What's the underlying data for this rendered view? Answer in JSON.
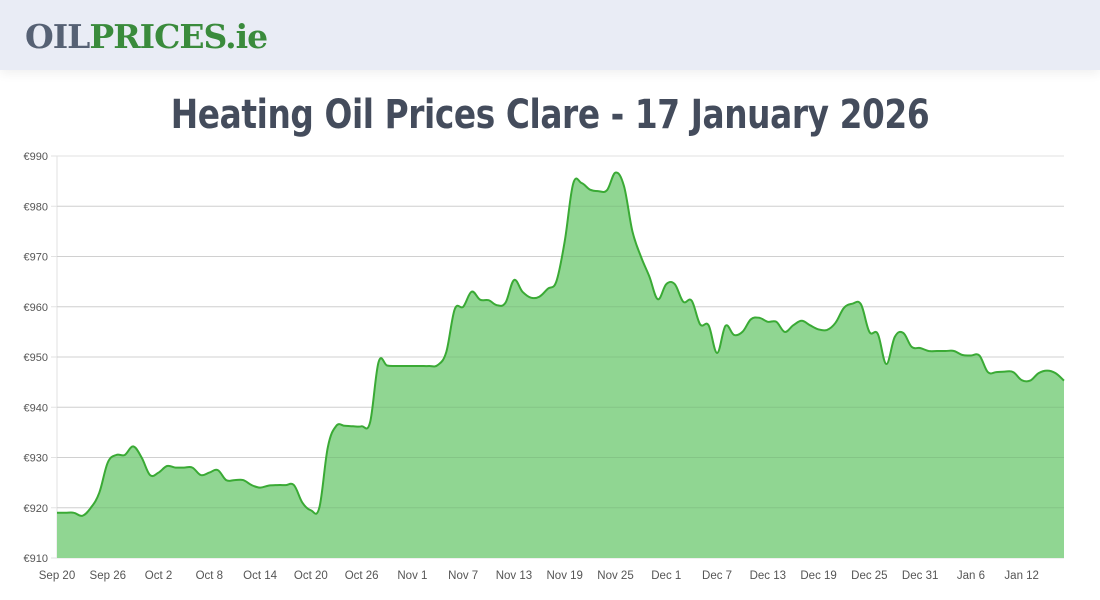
{
  "header": {
    "logo": {
      "part1": "OIL",
      "part2": "PRICES.ie"
    }
  },
  "page": {
    "title": "Heating Oil Prices Clare - 17 January 2026"
  },
  "colors": {
    "header_bg": "#e9ecf5",
    "logo_gray": "#566174",
    "logo_green": "#3a8b3c",
    "title": "#444c5c",
    "line": "#3aaa35",
    "fill": "#90d692",
    "grid": "#e2e2e2"
  },
  "chart_data": {
    "type": "area",
    "title": "Heating Oil Prices Clare - 17 January 2026",
    "xlabel": "",
    "ylabel": "",
    "currency_prefix": "€",
    "ylim": [
      910,
      990
    ],
    "yticks": [
      910,
      920,
      930,
      940,
      950,
      960,
      970,
      980,
      990
    ],
    "ytick_labels": [
      "€910",
      "€920",
      "€930",
      "€940",
      "€950",
      "€960",
      "€970",
      "€980",
      "€990"
    ],
    "xtick_labels": [
      "Sep 20",
      "Sep 26",
      "Oct 2",
      "Oct 8",
      "Oct 14",
      "Oct 20",
      "Oct 26",
      "Nov 1",
      "Nov 7",
      "Nov 13",
      "Nov 19",
      "Nov 25",
      "Dec 1",
      "Dec 7",
      "Dec 13",
      "Dec 19",
      "Dec 25",
      "Dec 31",
      "Jan 6",
      "Jan 12"
    ],
    "xtick_day_offsets": [
      0,
      6,
      12,
      18,
      24,
      30,
      36,
      42,
      48,
      54,
      60,
      66,
      72,
      78,
      84,
      90,
      96,
      102,
      108,
      114
    ],
    "grid": true,
    "legend": null,
    "x_start": "Sep 20",
    "x_end": "Jan 17",
    "series": [
      {
        "name": "Heating Oil Price (Clare)",
        "values": [
          919.0,
          919.0,
          919.0,
          918.4,
          920.0,
          923.0,
          929.0,
          930.5,
          930.5,
          932.2,
          930.0,
          926.5,
          927.0,
          928.3,
          928.0,
          928.0,
          928.0,
          926.5,
          927.0,
          927.5,
          925.5,
          925.5,
          925.5,
          924.5,
          924.0,
          924.4,
          924.5,
          924.5,
          924.5,
          921.0,
          919.5,
          920.0,
          932.0,
          936.3,
          936.3,
          936.2,
          936.2,
          937.0,
          949.0,
          948.3,
          948.2,
          948.2,
          948.2,
          948.2,
          948.2,
          948.4,
          951.0,
          959.5,
          960.0,
          963.0,
          961.4,
          961.3,
          960.3,
          960.8,
          965.3,
          963.0,
          961.8,
          962.0,
          963.6,
          965.0,
          973.0,
          984.5,
          984.6,
          983.3,
          983.0,
          983.2,
          986.7,
          984.0,
          975.0,
          970.0,
          966.0,
          961.5,
          964.5,
          964.5,
          961.0,
          961.2,
          956.5,
          956.3,
          950.8,
          956.2,
          954.4,
          955.0,
          957.5,
          957.8,
          957.0,
          957.0,
          955.0,
          956.3,
          957.2,
          956.3,
          955.5,
          955.4,
          956.8,
          959.8,
          960.6,
          960.5,
          955.0,
          954.6,
          948.6,
          954.0,
          954.8,
          952.0,
          951.8,
          951.2,
          951.2,
          951.2,
          951.2,
          950.4,
          950.3,
          950.3,
          947.0,
          947.0,
          947.1,
          947.0,
          945.4,
          945.3,
          946.8,
          947.3,
          946.8,
          945.3
        ]
      }
    ]
  }
}
